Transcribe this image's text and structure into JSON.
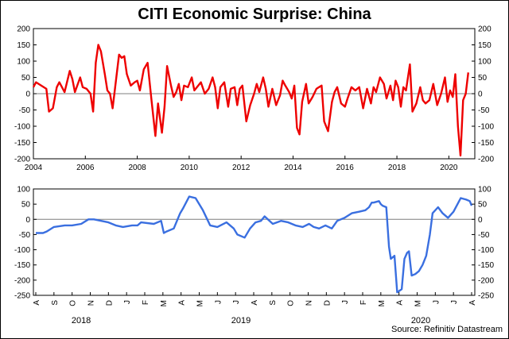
{
  "title": "CITI Economic Surprise: China",
  "source": "Source: Refinitiv Datastream",
  "colors": {
    "top_line": "#ee0000",
    "bottom_line": "#3a6fe0",
    "zero_line": "#7f7f7f",
    "frame": "#000000"
  },
  "chart_data": [
    {
      "type": "line",
      "ylim": [
        -200,
        200
      ],
      "xlim": [
        2004,
        2021
      ],
      "yticks": [
        "200",
        "150",
        "100",
        "50",
        "0",
        "-50",
        "-100",
        "-150",
        "-200"
      ],
      "xticks": [
        "2004",
        "2006",
        "2008",
        "2010",
        "2012",
        "2014",
        "2016",
        "2018",
        "2020"
      ],
      "grid": false,
      "series": [
        {
          "x": [
            2004.0,
            2004.1,
            2004.3,
            2004.5,
            2004.6,
            2004.75,
            2004.9,
            2005.0,
            2005.2,
            2005.4,
            2005.5,
            2005.6,
            2005.8,
            2005.9,
            2006.05,
            2006.2,
            2006.3,
            2006.4,
            2006.5,
            2006.6,
            2006.75,
            2006.85,
            2006.95,
            2007.05,
            2007.15,
            2007.3,
            2007.4,
            2007.5,
            2007.6,
            2007.75,
            2007.9,
            2008.0,
            2008.1,
            2008.25,
            2008.4,
            2008.55,
            2008.7,
            2008.8,
            2008.95,
            2009.05,
            2009.15,
            2009.3,
            2009.4,
            2009.5,
            2009.6,
            2009.7,
            2009.8,
            2009.95,
            2010.1,
            2010.2,
            2010.3,
            2010.45,
            2010.6,
            2010.75,
            2010.9,
            2011.0,
            2011.1,
            2011.2,
            2011.35,
            2011.5,
            2011.6,
            2011.75,
            2011.85,
            2011.95,
            2012.05,
            2012.2,
            2012.35,
            2012.5,
            2012.6,
            2012.7,
            2012.85,
            2012.95,
            2013.05,
            2013.2,
            2013.35,
            2013.5,
            2013.6,
            2013.7,
            2013.85,
            2013.95,
            2014.05,
            2014.15,
            2014.25,
            2014.35,
            2014.5,
            2014.6,
            2014.75,
            2014.9,
            2015.0,
            2015.1,
            2015.2,
            2015.35,
            2015.5,
            2015.6,
            2015.7,
            2015.85,
            2016.0,
            2016.1,
            2016.25,
            2016.4,
            2016.55,
            2016.7,
            2016.85,
            2017.0,
            2017.1,
            2017.2,
            2017.35,
            2017.5,
            2017.6,
            2017.75,
            2017.85,
            2017.95,
            2018.05,
            2018.15,
            2018.25,
            2018.35,
            2018.5,
            2018.6,
            2018.75,
            2018.9,
            2019.0,
            2019.1,
            2019.25,
            2019.4,
            2019.55,
            2019.7,
            2019.85,
            2019.95,
            2020.05,
            2020.15,
            2020.25,
            2020.35,
            2020.45,
            2020.55,
            2020.65,
            2020.75
          ],
          "y": [
            20,
            35,
            25,
            15,
            -55,
            -45,
            20,
            35,
            5,
            70,
            45,
            5,
            50,
            20,
            15,
            0,
            -55,
            95,
            150,
            130,
            60,
            10,
            0,
            -45,
            20,
            120,
            110,
            115,
            60,
            25,
            35,
            40,
            10,
            75,
            95,
            -20,
            -130,
            -30,
            -120,
            -40,
            85,
            25,
            -10,
            5,
            30,
            -20,
            25,
            20,
            50,
            10,
            20,
            35,
            0,
            15,
            50,
            20,
            -45,
            20,
            35,
            -40,
            15,
            20,
            -35,
            15,
            25,
            -85,
            -35,
            0,
            30,
            5,
            50,
            15,
            -40,
            15,
            -35,
            -5,
            40,
            25,
            5,
            -15,
            25,
            -105,
            -125,
            -25,
            30,
            -30,
            -10,
            15,
            20,
            25,
            -85,
            -115,
            -25,
            5,
            20,
            -30,
            -40,
            -15,
            20,
            10,
            20,
            -45,
            15,
            -30,
            20,
            5,
            50,
            30,
            -15,
            25,
            -20,
            40,
            20,
            -40,
            20,
            10,
            90,
            -55,
            -30,
            20,
            -20,
            -30,
            -20,
            30,
            -35,
            0,
            50,
            -25,
            10,
            -10,
            60,
            -100,
            -190,
            -20,
            0,
            65
          ]
        }
      ]
    },
    {
      "type": "line",
      "ylim": [
        -250,
        100
      ],
      "yticks": [
        "100",
        "50",
        "0",
        "-50",
        "-100",
        "-150",
        "-200",
        "-250"
      ],
      "xticks": [
        "A",
        "S",
        "O",
        "N",
        "D",
        "J",
        "F",
        "M",
        "A",
        "M",
        "J",
        "J",
        "A",
        "S",
        "O",
        "N",
        "D",
        "J",
        "F",
        "M",
        "A",
        "M",
        "J",
        "J",
        "A"
      ],
      "years": [
        "2018",
        "2019",
        "2020"
      ],
      "series": [
        {
          "x": [
            0,
            0.4,
            0.6,
            1.0,
            1.6,
            2.0,
            2.5,
            2.9,
            3.2,
            3.6,
            4.0,
            4.4,
            4.8,
            5.3,
            5.6,
            5.8,
            6.5,
            6.9,
            7.05,
            7.2,
            7.6,
            7.95,
            8.1,
            8.45,
            8.8,
            9.2,
            9.6,
            10.0,
            10.5,
            10.9,
            11.1,
            11.5,
            11.8,
            12.1,
            12.4,
            12.6,
            13.05,
            13.5,
            13.9,
            14.3,
            14.7,
            15.05,
            15.3,
            15.6,
            15.95,
            16.3,
            16.6,
            17.0,
            17.4,
            17.8,
            18.15,
            18.35,
            18.5,
            18.6,
            18.9,
            19.0,
            19.1,
            19.3,
            19.45,
            19.55,
            19.75,
            19.9,
            20.15,
            20.3,
            20.45,
            20.55,
            20.7,
            20.9,
            21.1,
            21.3,
            21.5,
            21.7,
            21.85,
            22.15,
            22.4,
            22.7,
            23.0,
            23.4,
            23.7,
            23.9,
            24.0
          ],
          "y": [
            -45,
            -45,
            -40,
            -25,
            -20,
            -20,
            -15,
            0,
            0,
            -5,
            -10,
            -20,
            -25,
            -20,
            -20,
            -10,
            -15,
            -5,
            -45,
            -40,
            -30,
            20,
            35,
            75,
            70,
            30,
            -20,
            -25,
            -10,
            -30,
            -50,
            -60,
            -30,
            -10,
            -5,
            10,
            -15,
            -5,
            -10,
            -20,
            -25,
            -15,
            -25,
            -30,
            -20,
            -30,
            -5,
            5,
            20,
            25,
            30,
            40,
            55,
            55,
            60,
            50,
            45,
            40,
            -90,
            -130,
            -120,
            -240,
            -230,
            -130,
            -110,
            -105,
            -185,
            -180,
            -170,
            -150,
            -120,
            -50,
            20,
            40,
            20,
            5,
            25,
            70,
            65,
            60,
            45
          ]
        }
      ]
    }
  ]
}
